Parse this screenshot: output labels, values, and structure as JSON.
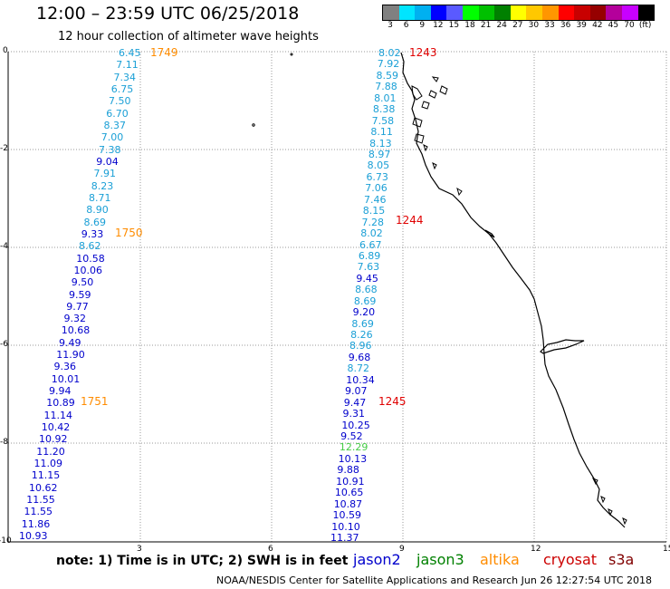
{
  "header": {
    "title": "12:00 – 23:59 UTC 06/25/2018",
    "subtitle": "12 hour collection of altimeter wave heights"
  },
  "colorbar": {
    "colors": [
      "#808080",
      "#00e5ff",
      "#00b0f0",
      "#0000ff",
      "#5a5aff",
      "#00ff00",
      "#00c000",
      "#008000",
      "#ffff00",
      "#ffc800",
      "#ff9600",
      "#ff0000",
      "#c80000",
      "#960000",
      "#b4009b",
      "#c800ff",
      "#000000"
    ],
    "labels": [
      "3",
      "6",
      "9",
      "12",
      "15",
      "18",
      "21",
      "24",
      "27",
      "30",
      "33",
      "36",
      "39",
      "42",
      "45",
      "70",
      "(ft)"
    ]
  },
  "axes": {
    "y_ticks": [
      "0",
      "-2",
      "-4",
      "-6",
      "-8",
      "-10"
    ],
    "x_ticks": [
      "3",
      "6",
      "9",
      "12",
      "15"
    ]
  },
  "left_track": {
    "values": [
      "6.45",
      "7.11",
      "7.34",
      "6.75",
      "7.50",
      "6.70",
      "8.37",
      "7.00",
      "7.38",
      "9.04",
      "7.91",
      "8.23",
      "8.71",
      "8.90",
      "8.69",
      "9.33",
      "8.62",
      "10.58",
      "10.06",
      "9.50",
      "9.59",
      "9.77",
      "9.32",
      "10.68",
      "9.49",
      "11.90",
      "9.36",
      "10.01",
      "9.94",
      "10.89",
      "11.14",
      "10.42",
      "10.92",
      "11.20",
      "11.09",
      "11.15",
      "10.62",
      "11.55",
      "11.55",
      "11.86",
      "10.93"
    ],
    "times": [
      "1749",
      "1750",
      "1751"
    ]
  },
  "right_track": {
    "values": [
      "8.02",
      "7.92",
      "8.59",
      "7.88",
      "8.01",
      "8.38",
      "7.58",
      "8.11",
      "8.13",
      "8.97",
      "8.05",
      "6.73",
      "7.06",
      "7.46",
      "8.15",
      "7.28",
      "8.02",
      "6.67",
      "6.89",
      "7.63",
      "9.45",
      "8.68",
      "8.69",
      "9.20",
      "8.69",
      "8.26",
      "8.96",
      "9.68",
      "8.72",
      "10.34",
      "9.07",
      "9.47",
      "9.31",
      "10.25",
      "9.52",
      "12.29",
      "10.13",
      "9.88",
      "10.91",
      "10.65",
      "10.87",
      "10.59",
      "10.10",
      "11.37"
    ],
    "times": [
      "1243",
      "1244",
      "1245"
    ]
  },
  "note": "note:  1) Time is in UTC;  2) SWH is in feet",
  "satellites": [
    {
      "name": "jason2",
      "color": "#0000cc"
    },
    {
      "name": "jason3",
      "color": "#008000"
    },
    {
      "name": "altika",
      "color": "#ff8c00"
    },
    {
      "name": "cryosat",
      "color": "#cc0000"
    },
    {
      "name": "s3a",
      "color": "#800000"
    }
  ],
  "footer": "NOAA/NESDIS Center for Satellite Applications and Research   Jun 26 12:27:54 UTC 2018"
}
